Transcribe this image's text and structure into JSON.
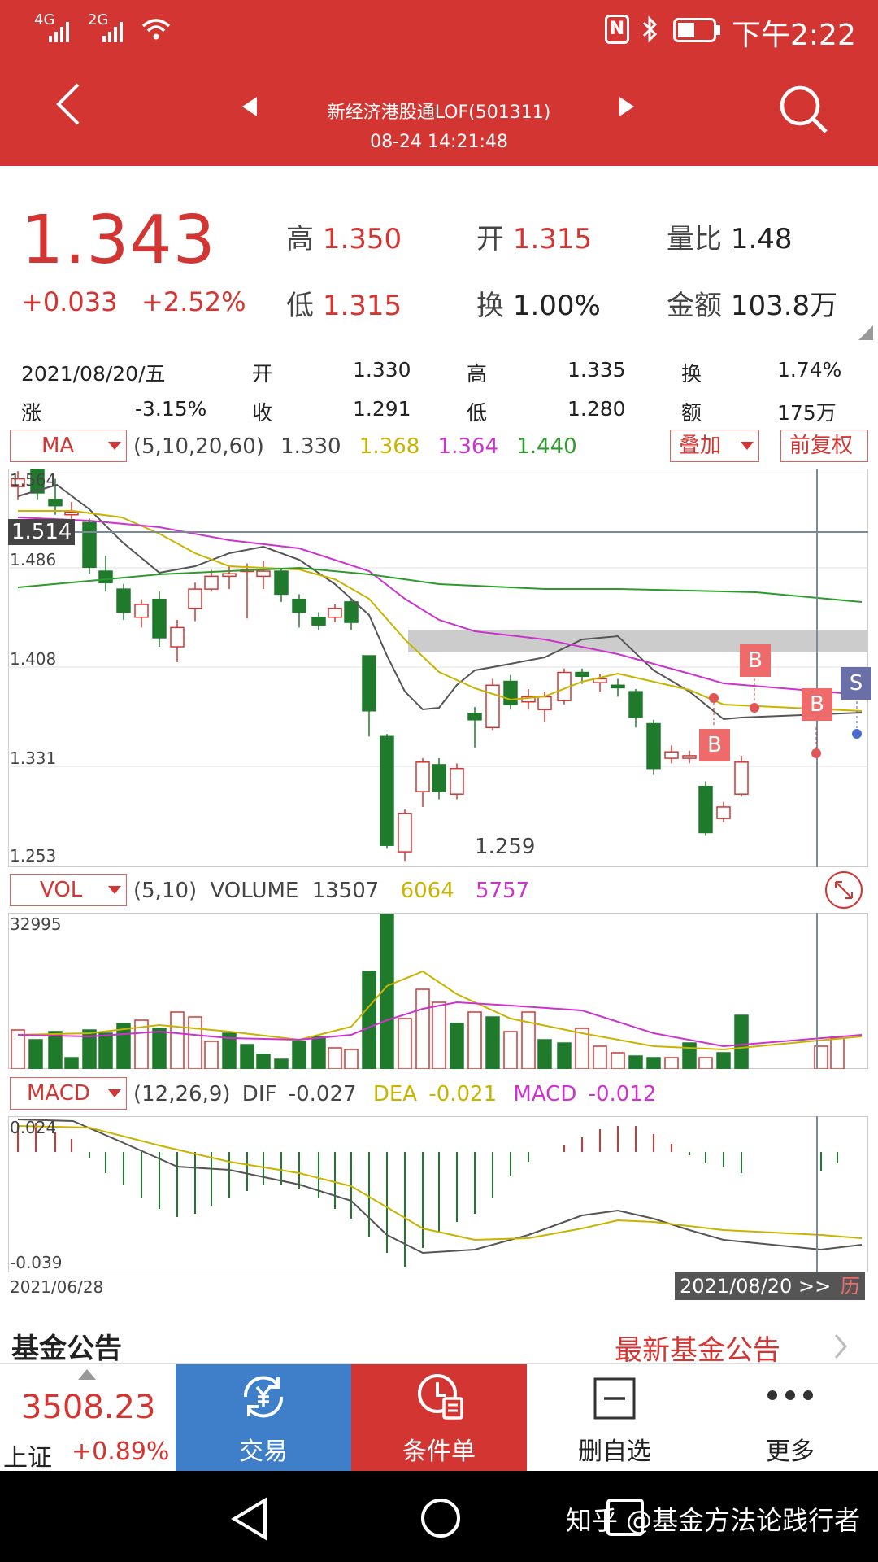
{
  "status": {
    "network1": "4G",
    "network2": "2G",
    "time": "下午2:22",
    "nfc": "N"
  },
  "header": {
    "title": "新经济港股通LOF(501311)",
    "datetime": "08-24 14:21:48"
  },
  "quote": {
    "price": "1.343",
    "change": "+0.033",
    "pct": "+2.52%",
    "high_label": "高",
    "high": "1.350",
    "open_label": "开",
    "open": "1.315",
    "ratio_label": "量比",
    "ratio": "1.48",
    "low_label": "低",
    "low": "1.315",
    "turnover_label": "换",
    "turnover": "1.00%",
    "amount_label": "金额",
    "amount": "103.8万"
  },
  "hist": {
    "date": "2021/08/20/五",
    "open_label": "开",
    "open": "1.330",
    "high_label": "高",
    "high": "1.335",
    "turn_label": "换",
    "turn": "1.74%",
    "chg_label": "涨",
    "chg": "-3.15%",
    "close_label": "收",
    "close": "1.291",
    "low_label": "低",
    "low": "1.280",
    "amt_label": "额",
    "amt": "175万"
  },
  "ma": {
    "select": "MA",
    "params": "(5,10,20,60)",
    "v1": "1.330",
    "v2": "1.368",
    "v3": "1.364",
    "v4": "1.440",
    "overlay": "叠加",
    "adjust": "前复权"
  },
  "kline": {
    "y_labels": [
      "1.564",
      "1.486",
      "1.408",
      "1.331",
      "1.253"
    ],
    "crosshair_price": "1.514",
    "min_label": "1.259",
    "markers": {
      "b": "B",
      "s": "S"
    }
  },
  "vol": {
    "select": "VOL",
    "params": "(5,10)",
    "name": "VOLUME",
    "v": "13507",
    "ma5": "6064",
    "ma10": "5757",
    "max": "32995"
  },
  "macd": {
    "select": "MACD",
    "params": "(12,26,9)",
    "dif_label": "DIF",
    "dif": "-0.027",
    "dea_label": "DEA",
    "dea": "-0.021",
    "macd_label": "MACD",
    "macd": "-0.012",
    "max": "0.024",
    "min": "-0.039"
  },
  "axis": {
    "start": "2021/06/28",
    "end": "2021/08/20 >>",
    "hist_btn": "历"
  },
  "notice": {
    "title": "基金公告",
    "link": "最新基金公告"
  },
  "bottom": {
    "index_value": "3508.23",
    "index_name": "上证",
    "index_pct": "+0.89%",
    "trade": "交易",
    "cond": "条件单",
    "del": "删自选",
    "more": "更多"
  },
  "watermark": "知乎 @基金方法论践行者",
  "colors": {
    "brand": "#d33632",
    "up": "#d33632",
    "down": "#1f7a2c",
    "ma5": "#555555",
    "ma10": "#c8b400",
    "ma20": "#cc33cc",
    "ma60": "#2e9a2e",
    "trade_bg": "#3f7fc9"
  }
}
